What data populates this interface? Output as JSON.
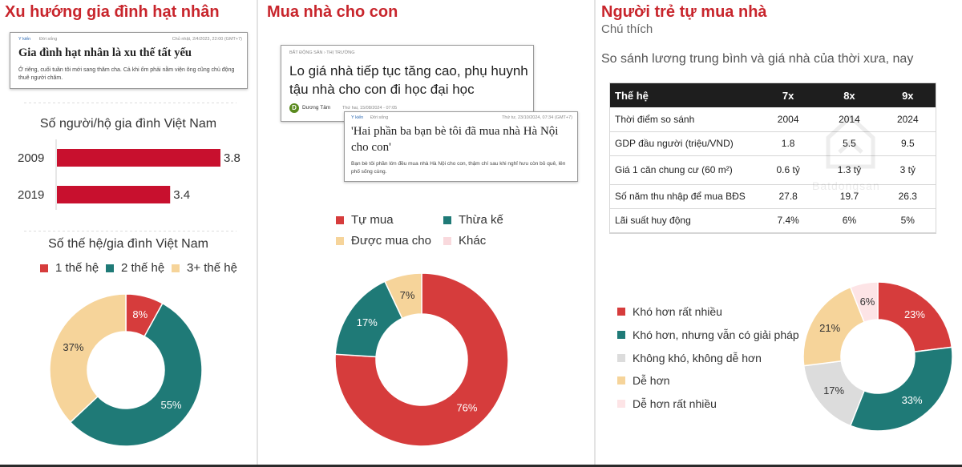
{
  "panels": {
    "left": {
      "title": "Xu hướng gia đình hạt nhân",
      "article": {
        "source": "Y kiến",
        "category": "Đời sống",
        "date": "Chủ nhật, 2/4/2023, 22:00 (GMT+7)",
        "headline": "Gia đình hạt nhân là xu thế tất yếu",
        "snippet": "Ở riêng, cuối tuần tôi mới sang thăm cha. Cả khi ốm phải nằm viện ông cũng chủ động thuê người chăm."
      }
    },
    "middle": {
      "title": "Mua nhà cho con",
      "article1": {
        "category": "BẤT ĐỘNG SẢN",
        "subcategory": "THỊ TRƯỜNG",
        "headline": "Lo giá nhà tiếp tục tăng cao, phụ huynh tậu nhà cho con đi học đại học",
        "avatar_letter": "D",
        "author": "Dương Tâm",
        "date": "Thứ hai, 15/08/2024 - 07:05"
      },
      "article2": {
        "source": "Y kiến",
        "category": "Đời sống",
        "date": "Thứ tư, 23/10/2024, 07:34 (GMT+7)",
        "headline": "'Hai phần ba bạn bè tôi đã mua nhà Hà Nội cho con'",
        "snippet": "Bạn bè tôi phần lớn đều mua nhà Hà Nội cho con, thậm chí sau khi nghỉ hưu còn bỏ quê, lên phố sống cùng."
      }
    },
    "right": {
      "title": "Người trẻ tự mua nhà",
      "note": "Chú thích",
      "subtitle": "So sánh lương trung bình và giá nhà của thời xưa, nay",
      "watermark": "Batdongsan",
      "table": {
        "headers": [
          "Thế hệ",
          "7x",
          "8x",
          "9x"
        ],
        "rows": [
          [
            "Thời điểm so sánh",
            "2004",
            "2014",
            "2024"
          ],
          [
            "GDP đầu người (triệu/VND)",
            "1.8",
            "5.5",
            "9.5"
          ],
          [
            "Giá 1 căn chung cư (60 m²)",
            "0.6 tỷ",
            "1.3 tỷ",
            "3 tỷ"
          ],
          [
            "Số năm thu nhập để mua BĐS",
            "27.8",
            "19.7",
            "26.3"
          ],
          [
            "Lãi suất huy động",
            "7.4%",
            "6%",
            "5%"
          ]
        ]
      }
    }
  },
  "chart_data": [
    {
      "type": "bar",
      "title": "Số người/hộ gia đình Việt Nam",
      "categories": [
        "2009",
        "2019"
      ],
      "values": [
        3.8,
        3.4
      ],
      "xlim": [
        2.5,
        3.8
      ],
      "color": "#c8102e"
    },
    {
      "type": "pie",
      "title": "Số thế hệ/gia đình Việt Nam",
      "labels": [
        "1 thế hệ",
        "2 thế hệ",
        "3+ thế hệ"
      ],
      "values": [
        8,
        55,
        37
      ],
      "colors": [
        "#d63c3c",
        "#1f7a77",
        "#f6d49a"
      ],
      "donut": true,
      "legend": "top"
    },
    {
      "type": "pie",
      "title": "",
      "labels": [
        "Tự mua",
        "Thừa kế",
        "Được mua cho",
        "Khác"
      ],
      "values": [
        76,
        17,
        7,
        0
      ],
      "colors": [
        "#d63c3c",
        "#1f7a77",
        "#f6d49a",
        "#f9d9dd"
      ],
      "donut": true,
      "legend": "top"
    },
    {
      "type": "pie",
      "title": "",
      "labels": [
        "Khó hơn rất nhiều",
        "Khó hơn, nhưng vẫn có giải pháp",
        "Không khó, không dễ hơn",
        "Dễ hơn",
        "Dễ hơn rất nhiều"
      ],
      "values": [
        23,
        33,
        17,
        21,
        6
      ],
      "colors": [
        "#d63c3c",
        "#1f7a77",
        "#dcdcdc",
        "#f6d49a",
        "#fde4e6"
      ],
      "donut": true,
      "legend": "left"
    }
  ]
}
